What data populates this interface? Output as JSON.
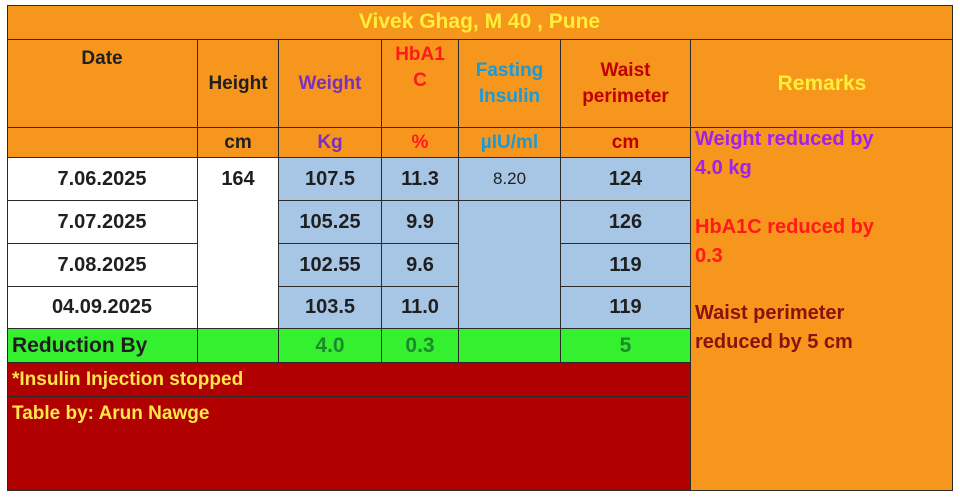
{
  "title": "Vivek Ghag, M 40 , Pune",
  "headers": {
    "date": "Date",
    "height": "Height",
    "weight": "Weight",
    "hba1c": [
      "HbA1",
      "C"
    ],
    "insulin": [
      "Fasting",
      "Insulin"
    ],
    "waist": [
      "Waist",
      "perimeter"
    ],
    "remarks": "Remarks"
  },
  "units": {
    "height": "cm",
    "weight": "Kg",
    "hba1c": "%",
    "insulin": "µIU/ml",
    "waist": "cm"
  },
  "rows": [
    {
      "date": "7.06.2025",
      "weight": "107.5",
      "hba1c": "11.3",
      "insulin": "8.20",
      "waist": "124"
    },
    {
      "date": "7.07.2025",
      "weight": "105.25",
      "hba1c": "9.9",
      "insulin": "",
      "waist": "126"
    },
    {
      "date": "7.08.2025",
      "weight": "102.55",
      "hba1c": "9.6",
      "insulin": "",
      "waist": "119"
    },
    {
      "date": "04.09.2025",
      "weight": "103.5",
      "hba1c": "11.0",
      "insulin": "",
      "waist": "119"
    }
  ],
  "height_value": "164",
  "reduction": {
    "label": "Reduction By",
    "weight": "4.0",
    "hba1c": "0.3",
    "waist": "5"
  },
  "remarks": [
    {
      "lines": [
        "Weight reduced by",
        "4.0 kg"
      ],
      "color": "#a020f0"
    },
    {
      "lines": [
        "HbA1C reduced by",
        "0.3"
      ],
      "color": "#ff1a1a"
    },
    {
      "lines": [
        "Waist perimeter",
        "reduced by 5 cm"
      ],
      "color": "#8b1010"
    }
  ],
  "notes": {
    "insulin_stopped": "*Insulin Injection stopped",
    "credit": "Table by: Arun Nawge"
  },
  "colors": {
    "header_bg": "#f7961d",
    "data_bg": "#a7c6e6",
    "reduction_bg": "#35f02f",
    "note_bg": "#b00000",
    "title_text": "#ffee3a",
    "weight_color": "#7b2fbf",
    "hba1c_color": "#ff1a1a",
    "insulin_color": "#1a9ad6",
    "waist_color": "#c00000",
    "remarks_header": "#ffee3a",
    "reduction_value": "#1a8a2a"
  }
}
